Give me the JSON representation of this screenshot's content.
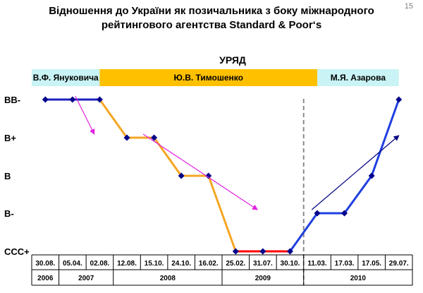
{
  "page_number": "15",
  "title_line1": "Відношення до України як позичальника з боку міжнародного",
  "title_line2": "рейтингового агентства Standard & Poor‘s",
  "government": {
    "label": "УРЯД",
    "bands": [
      {
        "name": "В.Ф. Януковича",
        "color": "#c9f3f4",
        "from": 0,
        "to": 2.5
      },
      {
        "name": "Ю.В. Тимошенко",
        "color": "#ffc000",
        "from": 2.5,
        "to": 10.5
      },
      {
        "name": "М.Я. Азарова",
        "color": "#c9f3f4",
        "from": 10.5,
        "to": 13.5
      }
    ]
  },
  "chart_data": {
    "type": "line",
    "categories": [
      "30.08.",
      "05.04.",
      "02.08.",
      "12.08.",
      "15.10.",
      "24.10.",
      "16.02.",
      "25.02.",
      "31.07.",
      "30.10.",
      "11.03.",
      "17.03.",
      "17.05.",
      "29.07."
    ],
    "years": [
      {
        "label": "2006",
        "from": 0,
        "to": 1
      },
      {
        "label": "2007",
        "from": 1,
        "to": 3
      },
      {
        "label": "2008",
        "from": 3,
        "to": 7
      },
      {
        "label": "2009",
        "from": 7,
        "to": 10
      },
      {
        "label": "2010",
        "from": 10,
        "to": 14
      }
    ],
    "y_levels": [
      "CCC+",
      "B-",
      "B",
      "B+",
      "BB-"
    ],
    "values": [
      "BB-",
      "BB-",
      "BB-",
      "B+",
      "B+",
      "B",
      "B",
      "CCC+",
      "CCC+",
      "CCC+",
      "B-",
      "B-",
      "B",
      "BB-"
    ],
    "line_colors": {
      "yanukovych": "#1f1fbf",
      "tymoshenko": "#f5a623",
      "bottom": "#ff0000",
      "azarov": "#1f3fdf"
    },
    "marker_color": "#00008b",
    "divider_color": "#808080",
    "arrows": [
      {
        "from": [
          1.1,
          "BB-"
        ],
        "to": [
          1.8,
          "B+"
        ],
        "color": "#e020e0"
      },
      {
        "from": [
          3.6,
          "B+"
        ],
        "to": [
          7.8,
          "B-"
        ],
        "color": "#e020e0"
      },
      {
        "from": [
          9.8,
          "B-"
        ],
        "to": [
          13.0,
          "B+"
        ],
        "color": "#000080"
      }
    ]
  }
}
